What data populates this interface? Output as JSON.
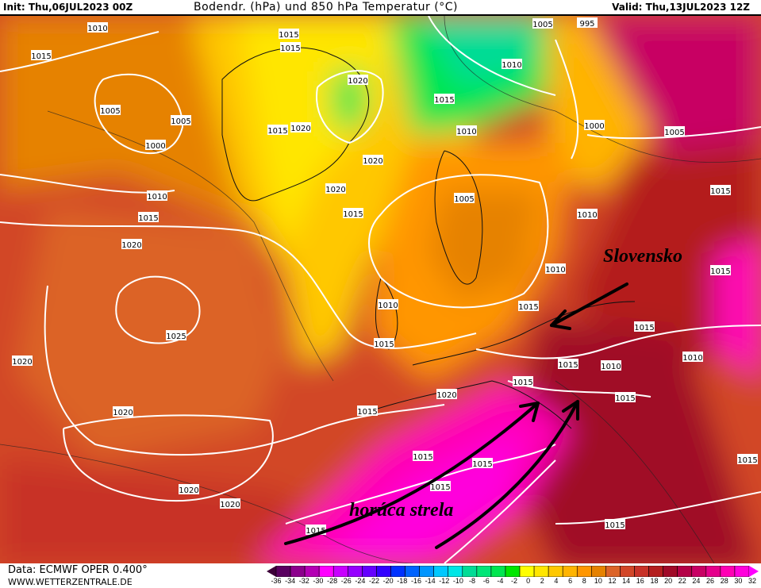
{
  "header": {
    "init": "Init: Thu,06JUL2023 00Z",
    "title": "Bodendr. (hPa) und 850 hPa Temperatur (°C)",
    "valid": "Valid: Thu,13JUL2023 12Z"
  },
  "footer": {
    "data_source": "Data: ECMWF OPER 0.400°",
    "website": "WWW.WETTERZENTRALE.DE"
  },
  "legend": {
    "labels": [
      "-36",
      "-34",
      "-32",
      "-30",
      "-28",
      "-26",
      "-24",
      "-22",
      "-20",
      "-18",
      "-16",
      "-14",
      "-12",
      "-10",
      "-8",
      "-6",
      "-4",
      "-2",
      "0",
      "2",
      "4",
      "6",
      "8",
      "10",
      "12",
      "14",
      "16",
      "18",
      "20",
      "22",
      "24",
      "26",
      "28",
      "30",
      "32"
    ],
    "colors": [
      "#5a0060",
      "#8c008c",
      "#b400b4",
      "#ff00ff",
      "#c800ff",
      "#9600ff",
      "#6400ff",
      "#3200ff",
      "#0032ff",
      "#0064ff",
      "#0096ff",
      "#00c8ff",
      "#00e6e6",
      "#00dc96",
      "#00e678",
      "#00e650",
      "#00e600",
      "#ffff00",
      "#ffe600",
      "#ffc800",
      "#ffb400",
      "#ff9600",
      "#e68200",
      "#dc6428",
      "#d24628",
      "#c83228",
      "#b41e1e",
      "#a00a28",
      "#b40046",
      "#c80064",
      "#e6008c",
      "#ff00b4",
      "#ff00dc"
    ],
    "low_arrow_color": "#3c0038",
    "high_arrow_color": "#ff00ff"
  },
  "map": {
    "isobar_labels": [
      "1010",
      "1015",
      "1005",
      "1005",
      "1000",
      "1010",
      "1015",
      "1020",
      "1025",
      "1020",
      "1020",
      "1020",
      "1020",
      "1015",
      "1020",
      "1015",
      "1020",
      "1015",
      "1005",
      "1010",
      "1015",
      "1010",
      "1015",
      "1015",
      "1020",
      "1015",
      "1015",
      "1015",
      "1015",
      "1015",
      "995",
      "1005",
      "1010",
      "1000",
      "1005",
      "1015",
      "1010",
      "1010",
      "1015",
      "1015",
      "1010",
      "1020",
      "1015",
      "1020",
      "1015",
      "1015",
      "1015",
      "1010",
      "1015",
      "1015"
    ],
    "annotations": {
      "country": "Slovensko",
      "hot_jet": "horúca strela"
    },
    "annotation_color": "#000000"
  }
}
